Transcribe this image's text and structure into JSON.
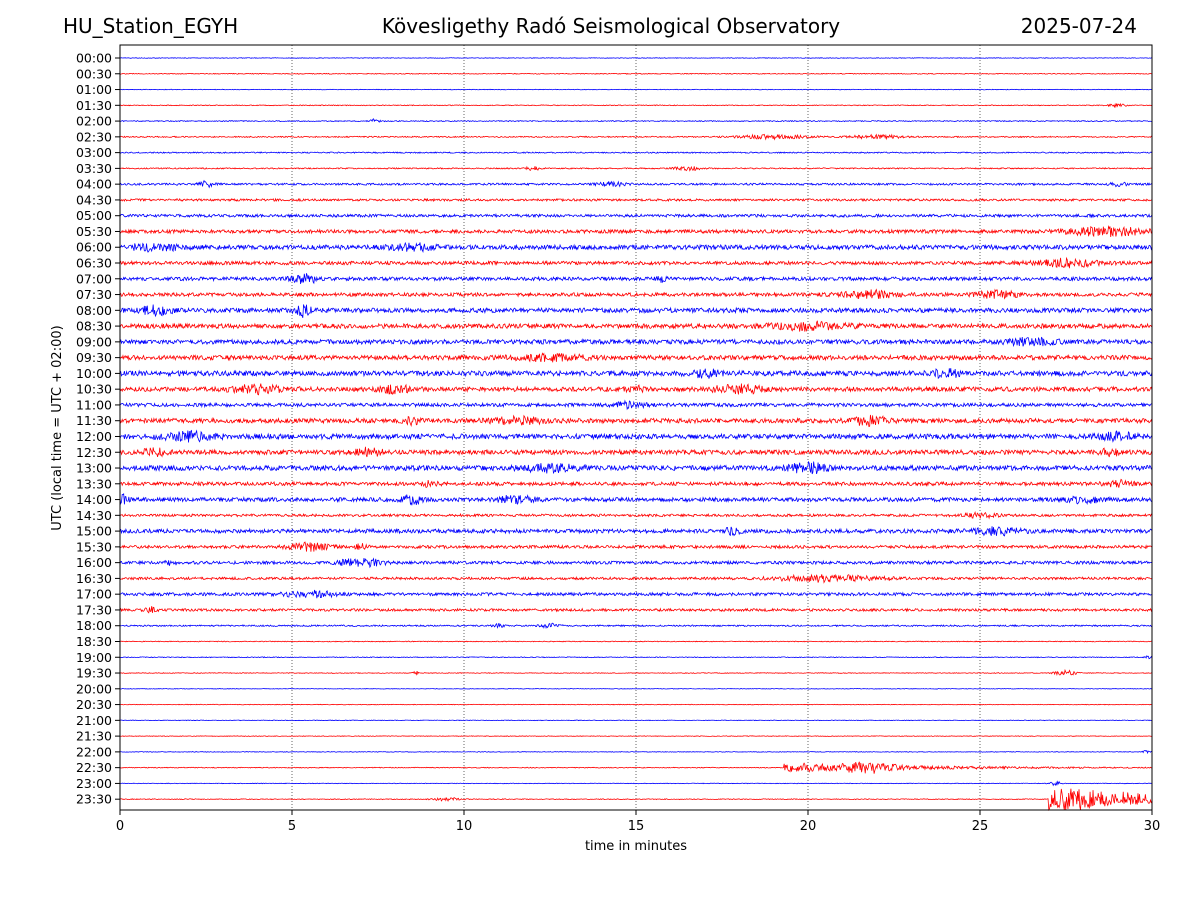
{
  "header": {
    "station": "HU_Station_EGYH",
    "title": "Kövesligethy Radó Seismological Observatory",
    "date": "2025-07-24"
  },
  "chart_data": {
    "type": "line",
    "title": "Kövesligethy Radó Seismological Observatory",
    "xlabel": "time in minutes",
    "ylabel": "UTC (local time = UTC + 02:00)",
    "xlim": [
      0,
      30
    ],
    "x_ticks": [
      0,
      5,
      10,
      15,
      20,
      25,
      30
    ],
    "grid": "vertical dotted at each x tick",
    "trace_colors": [
      "#0000ff",
      "#ff0000"
    ],
    "rows": [
      {
        "label": "00:00",
        "noise": 0.06,
        "events": []
      },
      {
        "label": "00:30",
        "noise": 0.08,
        "events": []
      },
      {
        "label": "01:00",
        "noise": 0.06,
        "events": []
      },
      {
        "label": "01:30",
        "noise": 0.08,
        "events": [
          {
            "t": 29.0,
            "amp": 0.3,
            "dur": 0.5
          }
        ]
      },
      {
        "label": "02:00",
        "noise": 0.1,
        "events": [
          {
            "t": 7.4,
            "amp": 0.4,
            "dur": 0.3
          }
        ]
      },
      {
        "label": "02:30",
        "noise": 0.12,
        "events": [
          {
            "t": 19.0,
            "amp": 0.4,
            "dur": 2.0
          },
          {
            "t": 22.0,
            "amp": 0.35,
            "dur": 1.5
          }
        ]
      },
      {
        "label": "03:00",
        "noise": 0.12,
        "events": []
      },
      {
        "label": "03:30",
        "noise": 0.12,
        "events": [
          {
            "t": 12.0,
            "amp": 0.4,
            "dur": 0.4
          },
          {
            "t": 16.5,
            "amp": 0.4,
            "dur": 0.8
          }
        ]
      },
      {
        "label": "04:00",
        "noise": 0.2,
        "events": [
          {
            "t": 2.5,
            "amp": 0.6,
            "dur": 0.4
          },
          {
            "t": 14.3,
            "amp": 0.4,
            "dur": 0.8
          },
          {
            "t": 29.0,
            "amp": 0.4,
            "dur": 0.5
          }
        ]
      },
      {
        "label": "04:30",
        "noise": 0.22,
        "events": []
      },
      {
        "label": "05:00",
        "noise": 0.28,
        "events": []
      },
      {
        "label": "05:30",
        "noise": 0.35,
        "events": [
          {
            "t": 28.7,
            "amp": 0.8,
            "dur": 2.2
          }
        ]
      },
      {
        "label": "06:00",
        "noise": 0.45,
        "events": [
          {
            "t": 1.0,
            "amp": 0.6,
            "dur": 1.5
          },
          {
            "t": 8.5,
            "amp": 0.6,
            "dur": 1.2
          }
        ]
      },
      {
        "label": "06:30",
        "noise": 0.35,
        "events": [
          {
            "t": 27.5,
            "amp": 0.7,
            "dur": 1.8
          }
        ]
      },
      {
        "label": "07:00",
        "noise": 0.35,
        "events": [
          {
            "t": 5.4,
            "amp": 0.8,
            "dur": 0.8
          },
          {
            "t": 15.7,
            "amp": 0.6,
            "dur": 0.3
          }
        ]
      },
      {
        "label": "07:30",
        "noise": 0.35,
        "events": [
          {
            "t": 21.8,
            "amp": 0.7,
            "dur": 1.5
          },
          {
            "t": 25.5,
            "amp": 0.6,
            "dur": 1.2
          }
        ]
      },
      {
        "label": "08:00",
        "noise": 0.45,
        "events": [
          {
            "t": 1.0,
            "amp": 0.8,
            "dur": 1.0
          },
          {
            "t": 5.3,
            "amp": 1.1,
            "dur": 0.5
          }
        ]
      },
      {
        "label": "08:30",
        "noise": 0.45,
        "events": [
          {
            "t": 20.0,
            "amp": 0.7,
            "dur": 2.0
          }
        ]
      },
      {
        "label": "09:00",
        "noise": 0.45,
        "events": [
          {
            "t": 26.5,
            "amp": 0.6,
            "dur": 1.5
          }
        ]
      },
      {
        "label": "09:30",
        "noise": 0.45,
        "events": [
          {
            "t": 12.5,
            "amp": 0.5,
            "dur": 2.0
          }
        ]
      },
      {
        "label": "10:00",
        "noise": 0.5,
        "events": [
          {
            "t": 17.0,
            "amp": 0.7,
            "dur": 0.8
          },
          {
            "t": 24.0,
            "amp": 0.7,
            "dur": 0.8
          }
        ]
      },
      {
        "label": "10:30",
        "noise": 0.45,
        "events": [
          {
            "t": 4.0,
            "amp": 0.7,
            "dur": 1.5
          },
          {
            "t": 8.0,
            "amp": 0.6,
            "dur": 1.0
          },
          {
            "t": 15.0,
            "amp": 0.6,
            "dur": 0.5
          },
          {
            "t": 18.0,
            "amp": 0.7,
            "dur": 1.5
          }
        ]
      },
      {
        "label": "11:00",
        "noise": 0.35,
        "events": [
          {
            "t": 14.8,
            "amp": 0.6,
            "dur": 0.8
          }
        ]
      },
      {
        "label": "11:30",
        "noise": 0.45,
        "events": [
          {
            "t": 8.5,
            "amp": 0.7,
            "dur": 0.4
          },
          {
            "t": 11.5,
            "amp": 0.6,
            "dur": 1.5
          },
          {
            "t": 21.8,
            "amp": 0.9,
            "dur": 1.0
          }
        ]
      },
      {
        "label": "12:00",
        "noise": 0.5,
        "events": [
          {
            "t": 2.0,
            "amp": 0.7,
            "dur": 1.5
          },
          {
            "t": 29.0,
            "amp": 0.6,
            "dur": 1.0
          }
        ]
      },
      {
        "label": "12:30",
        "noise": 0.45,
        "events": [
          {
            "t": 1.0,
            "amp": 0.6,
            "dur": 0.7
          },
          {
            "t": 7.2,
            "amp": 0.7,
            "dur": 0.8
          },
          {
            "t": 28.8,
            "amp": 0.6,
            "dur": 0.6
          }
        ]
      },
      {
        "label": "13:00",
        "noise": 0.5,
        "events": [
          {
            "t": 12.5,
            "amp": 0.7,
            "dur": 1.5
          },
          {
            "t": 20.0,
            "amp": 0.9,
            "dur": 1.0
          }
        ]
      },
      {
        "label": "13:30",
        "noise": 0.35,
        "events": [
          {
            "t": 9.0,
            "amp": 0.5,
            "dur": 0.5
          },
          {
            "t": 29.0,
            "amp": 0.6,
            "dur": 0.8
          }
        ]
      },
      {
        "label": "14:00",
        "noise": 0.4,
        "events": [
          {
            "t": 0.1,
            "amp": 0.8,
            "dur": 0.3
          },
          {
            "t": 8.5,
            "amp": 0.8,
            "dur": 0.6
          },
          {
            "t": 11.5,
            "amp": 0.7,
            "dur": 1.0
          },
          {
            "t": 28.0,
            "amp": 0.6,
            "dur": 1.0
          }
        ]
      },
      {
        "label": "14:30",
        "noise": 0.25,
        "events": [
          {
            "t": 25.0,
            "amp": 0.4,
            "dur": 1.0
          }
        ]
      },
      {
        "label": "15:00",
        "noise": 0.4,
        "events": [
          {
            "t": 17.8,
            "amp": 0.8,
            "dur": 0.4
          },
          {
            "t": 25.5,
            "amp": 0.6,
            "dur": 1.5
          }
        ]
      },
      {
        "label": "15:30",
        "noise": 0.3,
        "events": [
          {
            "t": 5.5,
            "amp": 0.7,
            "dur": 1.2
          },
          {
            "t": 7.0,
            "amp": 0.5,
            "dur": 0.3
          }
        ]
      },
      {
        "label": "16:00",
        "noise": 0.3,
        "events": [
          {
            "t": 7.0,
            "amp": 0.8,
            "dur": 1.2
          },
          {
            "t": 1.5,
            "amp": 0.5,
            "dur": 0.3
          }
        ]
      },
      {
        "label": "16:30",
        "noise": 0.25,
        "events": [
          {
            "t": 20.5,
            "amp": 0.6,
            "dur": 3.0
          }
        ]
      },
      {
        "label": "17:00",
        "noise": 0.3,
        "events": [
          {
            "t": 5.5,
            "amp": 0.6,
            "dur": 1.5
          }
        ]
      },
      {
        "label": "17:30",
        "noise": 0.25,
        "events": [
          {
            "t": 0.9,
            "amp": 0.6,
            "dur": 0.3
          }
        ]
      },
      {
        "label": "18:00",
        "noise": 0.15,
        "events": [
          {
            "t": 11.0,
            "amp": 0.4,
            "dur": 0.3
          },
          {
            "t": 12.5,
            "amp": 0.4,
            "dur": 0.5
          }
        ]
      },
      {
        "label": "18:30",
        "noise": 0.08,
        "events": []
      },
      {
        "label": "19:00",
        "noise": 0.08,
        "events": [
          {
            "t": 29.9,
            "amp": 0.3,
            "dur": 0.2
          }
        ]
      },
      {
        "label": "19:30",
        "noise": 0.07,
        "events": [
          {
            "t": 8.6,
            "amp": 0.5,
            "dur": 0.15
          },
          {
            "t": 27.5,
            "amp": 0.6,
            "dur": 0.6
          }
        ]
      },
      {
        "label": "20:00",
        "noise": 0.05,
        "events": []
      },
      {
        "label": "20:30",
        "noise": 0.06,
        "events": []
      },
      {
        "label": "21:00",
        "noise": 0.06,
        "events": []
      },
      {
        "label": "21:30",
        "noise": 0.06,
        "events": []
      },
      {
        "label": "22:00",
        "noise": 0.06,
        "events": [
          {
            "t": 29.8,
            "amp": 0.3,
            "dur": 0.2
          }
        ]
      },
      {
        "label": "22:30",
        "noise": 0.08,
        "events": [
          {
            "t": 19.3,
            "amp": 1.1,
            "dur": 3.5,
            "onset": true
          },
          {
            "t": 21.8,
            "amp": 0.7,
            "dur": 1.5
          }
        ]
      },
      {
        "label": "23:00",
        "noise": 0.06,
        "events": [
          {
            "t": 27.2,
            "amp": 0.5,
            "dur": 0.3
          }
        ]
      },
      {
        "label": "23:30",
        "noise": 0.08,
        "events": [
          {
            "t": 9.5,
            "amp": 0.3,
            "dur": 0.8
          },
          {
            "t": 27.0,
            "amp": 3.0,
            "dur": 3.0,
            "onset": true
          }
        ]
      }
    ]
  }
}
